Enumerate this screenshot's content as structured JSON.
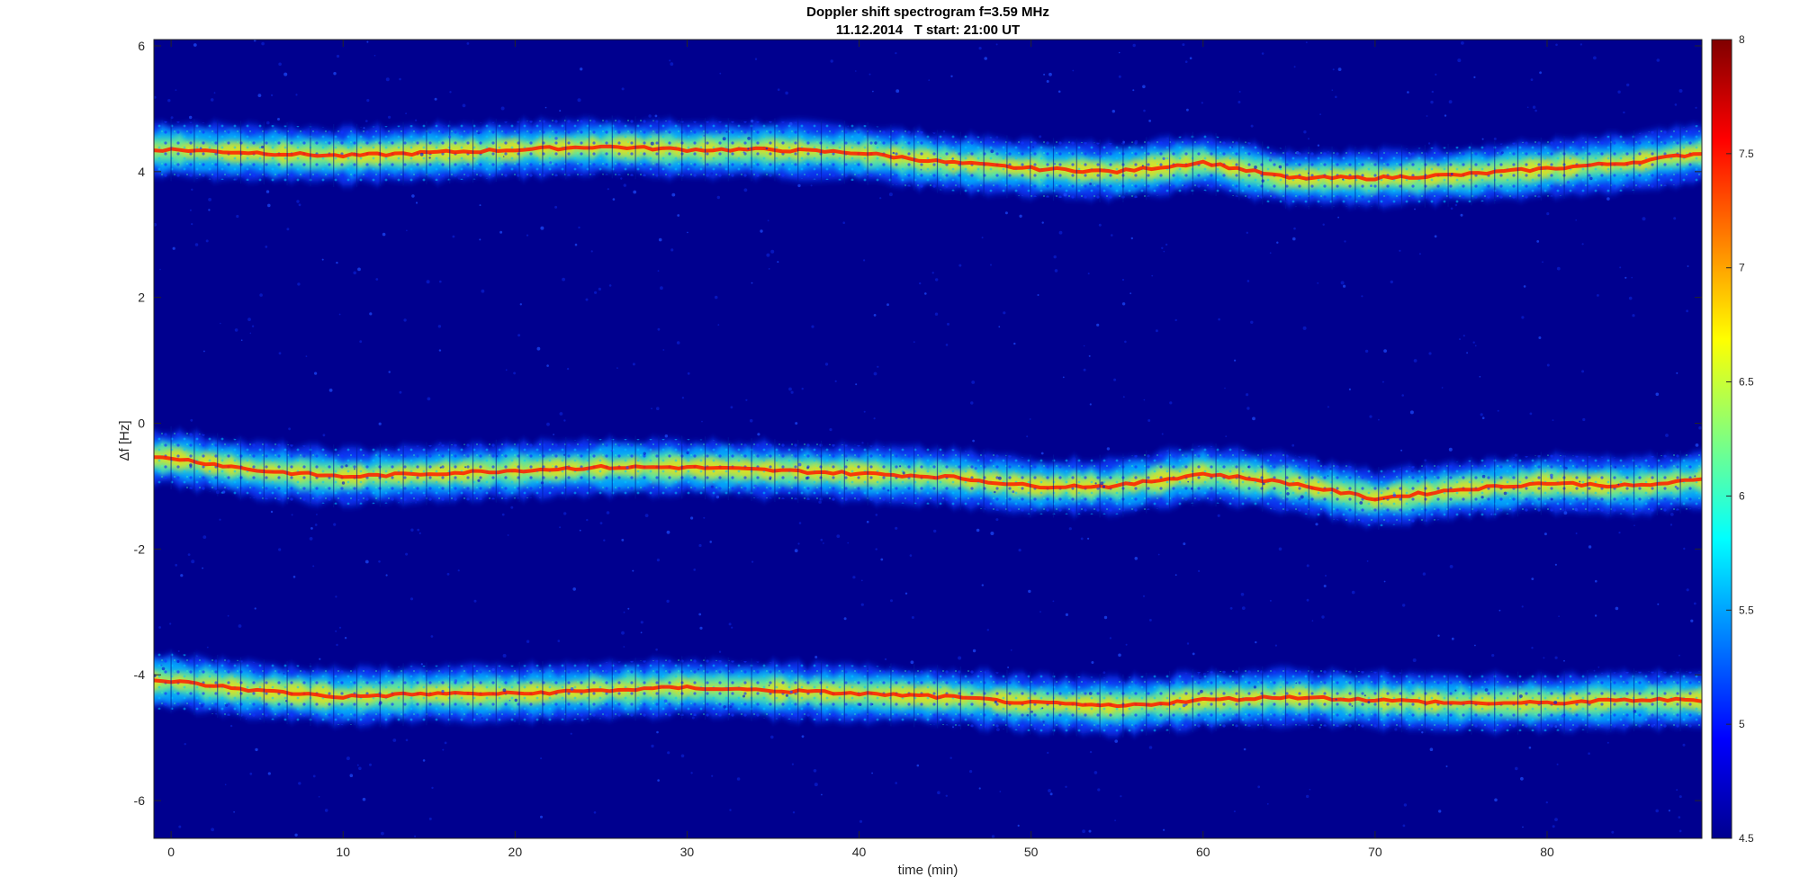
{
  "chart_data": {
    "type": "heatmap",
    "title": "Doppler shift spectrogram f=3.59 MHz",
    "subtitle": "11.12.2014   T start: 21:00 UT",
    "xlabel": "time (min)",
    "ylabel": "Δf [Hz]",
    "xlim": [
      -1,
      89
    ],
    "ylim": [
      -6.6,
      6.1
    ],
    "x_ticks": [
      "0",
      "10",
      "20",
      "30",
      "40",
      "50",
      "60",
      "70",
      "80"
    ],
    "y_ticks": [
      "6",
      "4",
      "2",
      "0",
      "-2",
      "-4",
      "-6"
    ],
    "colorbar": {
      "colormap": "jet",
      "range": [
        4.5,
        8
      ],
      "ticks": [
        "8",
        "7.5",
        "7",
        "6.5",
        "6",
        "5.5",
        "5",
        "4.5"
      ]
    },
    "background_color": "#00008f",
    "series": [
      {
        "x": [
          0,
          5,
          10,
          15,
          20,
          25,
          30,
          35,
          40,
          45,
          50,
          55,
          60,
          65,
          70,
          75,
          80,
          85,
          89
        ],
        "y": [
          4.35,
          4.3,
          4.25,
          4.3,
          4.35,
          4.4,
          4.35,
          4.35,
          4.3,
          4.15,
          4.05,
          4.0,
          4.15,
          3.9,
          3.9,
          3.95,
          4.05,
          4.15,
          4.3
        ]
      },
      {
        "x": [
          0,
          5,
          10,
          15,
          20,
          25,
          30,
          35,
          40,
          45,
          50,
          55,
          60,
          65,
          70,
          75,
          80,
          85,
          89
        ],
        "y": [
          -0.55,
          -0.75,
          -0.85,
          -0.8,
          -0.75,
          -0.7,
          -0.7,
          -0.75,
          -0.8,
          -0.85,
          -1.0,
          -1.0,
          -0.8,
          -0.95,
          -1.2,
          -1.05,
          -0.95,
          -1.0,
          -0.9
        ]
      },
      {
        "x": [
          0,
          5,
          10,
          15,
          20,
          25,
          30,
          35,
          40,
          45,
          50,
          55,
          60,
          65,
          70,
          75,
          80,
          85,
          89
        ],
        "y": [
          -4.1,
          -4.25,
          -4.35,
          -4.3,
          -4.3,
          -4.25,
          -4.2,
          -4.25,
          -4.3,
          -4.35,
          -4.45,
          -4.5,
          -4.4,
          -4.35,
          -4.4,
          -4.45,
          -4.45,
          -4.4,
          -4.4
        ]
      }
    ]
  }
}
